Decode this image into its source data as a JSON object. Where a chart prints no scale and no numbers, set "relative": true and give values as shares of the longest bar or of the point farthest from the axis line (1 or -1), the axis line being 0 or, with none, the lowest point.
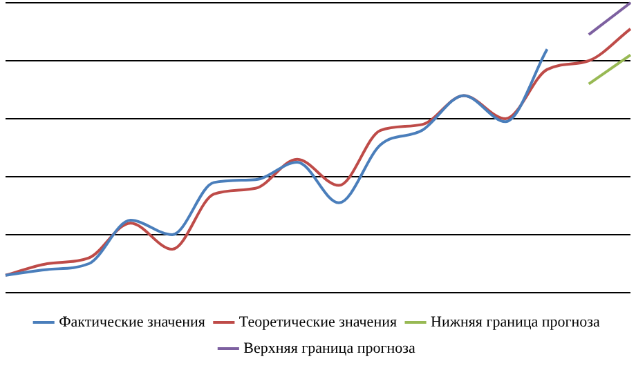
{
  "chart_data": {
    "type": "line",
    "relative": true,
    "grid": "y",
    "legend": "bottom",
    "categories": [
      null,
      null,
      null,
      null,
      null,
      null,
      null,
      null,
      null,
      null,
      null,
      null,
      null,
      null,
      null,
      null
    ],
    "series": [
      {
        "name": "Фактические значения",
        "color": "#4a7ebb",
        "values": [
          0.06,
          0.08,
          0.1,
          0.25,
          0.2,
          0.38,
          0.39,
          0.45,
          0.31,
          0.51,
          0.56,
          0.68,
          0.59,
          0.84,
          null,
          null
        ]
      },
      {
        "name": "Теоретические значения",
        "color": "#be4b48",
        "values": [
          0.06,
          0.1,
          0.12,
          0.24,
          0.15,
          0.34,
          0.36,
          0.46,
          0.37,
          0.56,
          0.58,
          0.68,
          0.6,
          0.77,
          0.8,
          0.91
        ]
      },
      {
        "name": "Нижняя граница прогноза",
        "color": "#98b954",
        "values": [
          null,
          null,
          null,
          null,
          null,
          null,
          null,
          null,
          null,
          null,
          null,
          null,
          null,
          null,
          0.72,
          0.82
        ]
      },
      {
        "name": "Верхняя граница прогноза",
        "color": "#7d60a0",
        "values": [
          null,
          null,
          null,
          null,
          null,
          null,
          null,
          null,
          null,
          null,
          null,
          null,
          null,
          null,
          0.89,
          1
        ]
      }
    ]
  }
}
